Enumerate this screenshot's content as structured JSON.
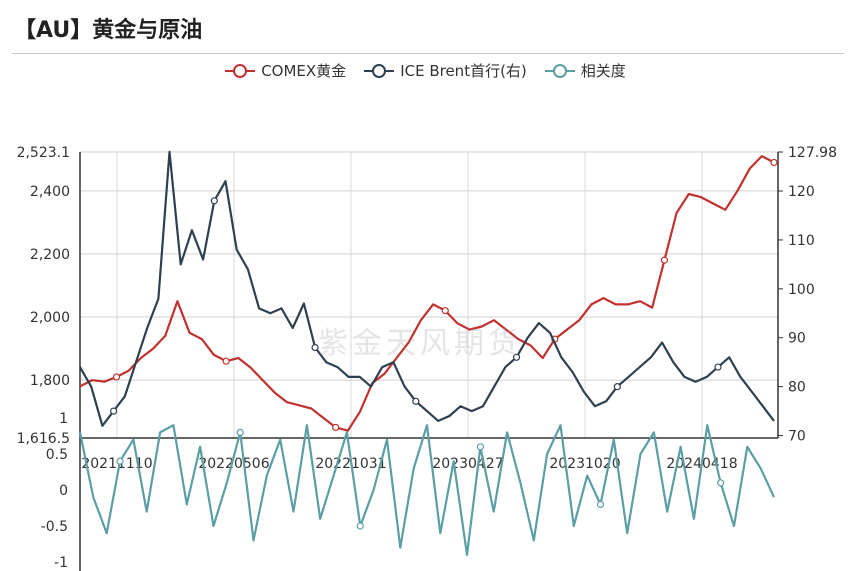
{
  "title": "【AU】黄金与原油",
  "watermark": "紫金天风期货",
  "legend": [
    {
      "name": "COMEX黄金",
      "color": "#c0322f"
    },
    {
      "name": "ICE Brent首行(右)",
      "color": "#2f4050"
    },
    {
      "name": "相关度",
      "color": "#5b9ea6"
    }
  ],
  "chart_data": [
    {
      "type": "line",
      "title": "",
      "x_ticks": [
        "20211110",
        "20220506",
        "20221031",
        "20230427",
        "20231020",
        "20240418"
      ],
      "y_left": {
        "ticks": [
          "1,616.5",
          "1,800",
          "2,000",
          "2,200",
          "2,400",
          "2,523.1"
        ],
        "range": [
          1616.5,
          2523.1
        ]
      },
      "y_right": {
        "ticks": [
          "70",
          "80",
          "90",
          "100",
          "110",
          "120",
          "127.98"
        ],
        "range": [
          69.5,
          127.98
        ]
      },
      "series": [
        {
          "name": "COMEX黄金",
          "axis": "left",
          "color": "#c0322f",
          "values": [
            1780,
            1800,
            1795,
            1810,
            1830,
            1870,
            1900,
            1940,
            2050,
            1950,
            1930,
            1880,
            1860,
            1870,
            1840,
            1800,
            1760,
            1730,
            1720,
            1710,
            1680,
            1650,
            1640,
            1700,
            1790,
            1820,
            1870,
            1920,
            1990,
            2040,
            2020,
            1980,
            1960,
            1970,
            1990,
            1960,
            1930,
            1910,
            1870,
            1930,
            1960,
            1990,
            2040,
            2060,
            2040,
            2040,
            2050,
            2030,
            2180,
            2330,
            2390,
            2380,
            2360,
            2340,
            2400,
            2470,
            2510,
            2490
          ]
        },
        {
          "name": "ICE Brent首行(右)",
          "axis": "right",
          "color": "#2f4050",
          "values": [
            84,
            80,
            72,
            75,
            78,
            85,
            92,
            98,
            128,
            105,
            112,
            106,
            118,
            122,
            108,
            104,
            96,
            95,
            96,
            92,
            97,
            88,
            85,
            84,
            82,
            82,
            80,
            84,
            85,
            80,
            77,
            75,
            73,
            74,
            76,
            75,
            76,
            80,
            84,
            86,
            90,
            93,
            91,
            86,
            83,
            79,
            76,
            77,
            80,
            82,
            84,
            86,
            89,
            85,
            82,
            81,
            82,
            84,
            86,
            82,
            79,
            76,
            73
          ]
        },
        {
          "name": "相关度",
          "axis": "lower",
          "color": "#5b9ea6",
          "values": [
            0.8,
            -0.1,
            -0.6,
            0.4,
            0.7,
            -0.3,
            0.8,
            0.9,
            -0.2,
            0.6,
            -0.5,
            0.1,
            0.8,
            -0.7,
            0.2,
            0.7,
            -0.3,
            0.9,
            -0.4,
            0.2,
            0.8,
            -0.5,
            0.0,
            0.7,
            -0.8,
            0.3,
            0.9,
            -0.6,
            0.4,
            -0.9,
            0.6,
            -0.3,
            0.8,
            0.1,
            -0.7,
            0.5,
            0.9,
            -0.5,
            0.2,
            -0.2,
            0.7,
            -0.6,
            0.5,
            0.8,
            -0.3,
            0.6,
            -0.4,
            0.9,
            0.1,
            -0.5,
            0.6,
            0.3,
            -0.1
          ]
        }
      ],
      "lower_axis": {
        "ticks": [
          "-1",
          "-0.5",
          "0",
          "0.5",
          "1"
        ],
        "range": [
          -1,
          1
        ]
      }
    }
  ]
}
